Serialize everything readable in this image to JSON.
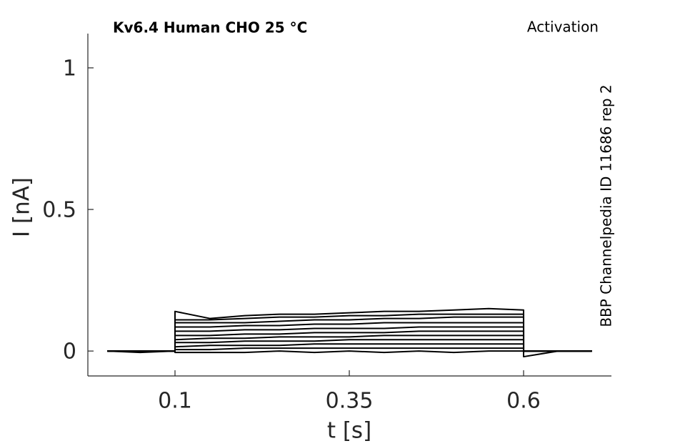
{
  "chart_data": {
    "type": "line",
    "title": "Kv6.4  Human  CHO  25 °C",
    "subtitle": "Activation",
    "annotation": "BBP Channelpedia ID 11686 rep 2",
    "x_label": "t [s]",
    "y_label": "I [nA]",
    "xlim": [
      -0.025,
      0.726
    ],
    "ylim": [
      -0.088,
      1.121
    ],
    "xticks": [
      0.1,
      0.35,
      0.6
    ],
    "yticks": [
      0,
      0.5,
      1
    ],
    "grid": false,
    "x": [
      0.003,
      0.05,
      0.099,
      0.1,
      0.1,
      0.15,
      0.2,
      0.25,
      0.3,
      0.35,
      0.4,
      0.45,
      0.5,
      0.55,
      0.6,
      0.6,
      0.65,
      0.698
    ],
    "series": [
      {
        "color": "#000000",
        "values": [
          0,
          -0.005,
          0,
          0,
          0.14,
          0.115,
          0.125,
          0.13,
          0.13,
          0.135,
          0.14,
          0.14,
          0.145,
          0.15,
          0.145,
          0,
          0,
          0
        ]
      },
      {
        "color": "#000000",
        "values": [
          0,
          0,
          0,
          0,
          0.11,
          0.11,
          0.115,
          0.12,
          0.12,
          0.125,
          0.125,
          0.13,
          0.13,
          0.13,
          0.13,
          0,
          0,
          0
        ]
      },
      {
        "color": "#000000",
        "values": [
          0,
          0,
          0,
          0,
          0.1,
          0.1,
          0.1,
          0.105,
          0.11,
          0.11,
          0.115,
          0.115,
          0.12,
          0.12,
          0.12,
          0,
          0,
          0
        ]
      },
      {
        "color": "#000000",
        "values": [
          0,
          0,
          0,
          0,
          0.085,
          0.085,
          0.09,
          0.09,
          0.095,
          0.095,
          0.1,
          0.1,
          0.1,
          0.1,
          0.1,
          0,
          0,
          0
        ]
      },
      {
        "color": "#000000",
        "values": [
          0,
          0,
          0,
          0,
          0.07,
          0.07,
          0.075,
          0.075,
          0.08,
          0.08,
          0.08,
          0.085,
          0.085,
          0.085,
          0.085,
          0,
          0,
          0
        ]
      },
      {
        "color": "#000000",
        "values": [
          0,
          0,
          0,
          0,
          0.055,
          0.055,
          0.06,
          0.06,
          0.065,
          0.065,
          0.065,
          0.07,
          0.07,
          0.07,
          0.07,
          0,
          0,
          0
        ]
      },
      {
        "color": "#000000",
        "values": [
          0,
          0,
          0,
          0,
          0.04,
          0.045,
          0.045,
          0.05,
          0.05,
          0.05,
          0.055,
          0.055,
          0.055,
          0.055,
          0.055,
          0,
          0,
          0
        ]
      },
      {
        "color": "#000000",
        "values": [
          0,
          0,
          0,
          0,
          0.03,
          0.03,
          0.035,
          0.035,
          0.035,
          0.04,
          0.04,
          0.04,
          0.04,
          0.04,
          0.04,
          0,
          0,
          0
        ]
      },
      {
        "color": "#000000",
        "values": [
          0,
          0,
          0,
          0,
          0.015,
          0.02,
          0.02,
          0.02,
          0.025,
          0.025,
          0.025,
          0.025,
          0.025,
          0.025,
          0.025,
          0,
          0,
          0
        ]
      },
      {
        "color": "#000000",
        "values": [
          0,
          0,
          0,
          0,
          0.005,
          0.005,
          0.01,
          0.01,
          0.01,
          0.01,
          0.01,
          0.01,
          0.01,
          0.01,
          0.01,
          0,
          0,
          0
        ]
      },
      {
        "color": "#000000",
        "values": [
          0,
          0,
          0,
          0,
          -0.005,
          -0.005,
          -0.005,
          0,
          -0.005,
          0,
          -0.005,
          0,
          -0.005,
          0,
          0,
          -0.02,
          0,
          0
        ]
      }
    ]
  }
}
